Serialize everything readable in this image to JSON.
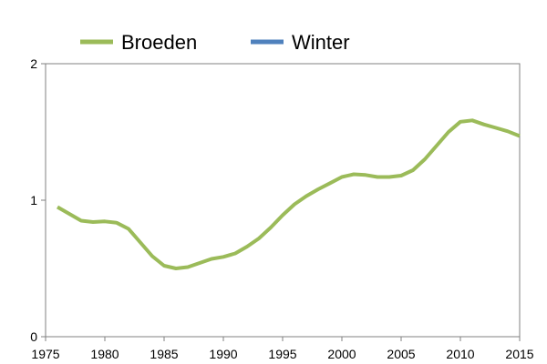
{
  "chart_data": {
    "type": "line",
    "title": "",
    "xlabel": "",
    "ylabel": "",
    "xlim": [
      1975,
      2015
    ],
    "ylim": [
      0,
      2
    ],
    "xticks": [
      1975,
      1980,
      1985,
      1990,
      1995,
      2000,
      2005,
      2010,
      2015
    ],
    "yticks": [
      0,
      1,
      2
    ],
    "grid": false,
    "legend_position": "top-left",
    "series": [
      {
        "name": "Broeden",
        "color": "#9bbb59",
        "x": [
          1976,
          1977,
          1978,
          1979,
          1980,
          1981,
          1982,
          1983,
          1984,
          1985,
          1986,
          1987,
          1988,
          1989,
          1990,
          1991,
          1992,
          1993,
          1994,
          1995,
          1996,
          1997,
          1998,
          1999,
          2000,
          2001,
          2002,
          2003,
          2004,
          2005,
          2006,
          2007,
          2008,
          2009,
          2010,
          2011,
          2012,
          2013,
          2014,
          2015
        ],
        "y": [
          0.95,
          0.9,
          0.85,
          0.84,
          0.845,
          0.835,
          0.79,
          0.69,
          0.59,
          0.52,
          0.5,
          0.51,
          0.54,
          0.57,
          0.585,
          0.61,
          0.66,
          0.72,
          0.8,
          0.89,
          0.97,
          1.03,
          1.08,
          1.125,
          1.17,
          1.19,
          1.185,
          1.17,
          1.17,
          1.18,
          1.22,
          1.3,
          1.4,
          1.5,
          1.575,
          1.585,
          1.555,
          1.53,
          1.505,
          1.47
        ]
      },
      {
        "name": "Winter",
        "color": "#4f81bd",
        "x": [],
        "y": []
      }
    ]
  }
}
